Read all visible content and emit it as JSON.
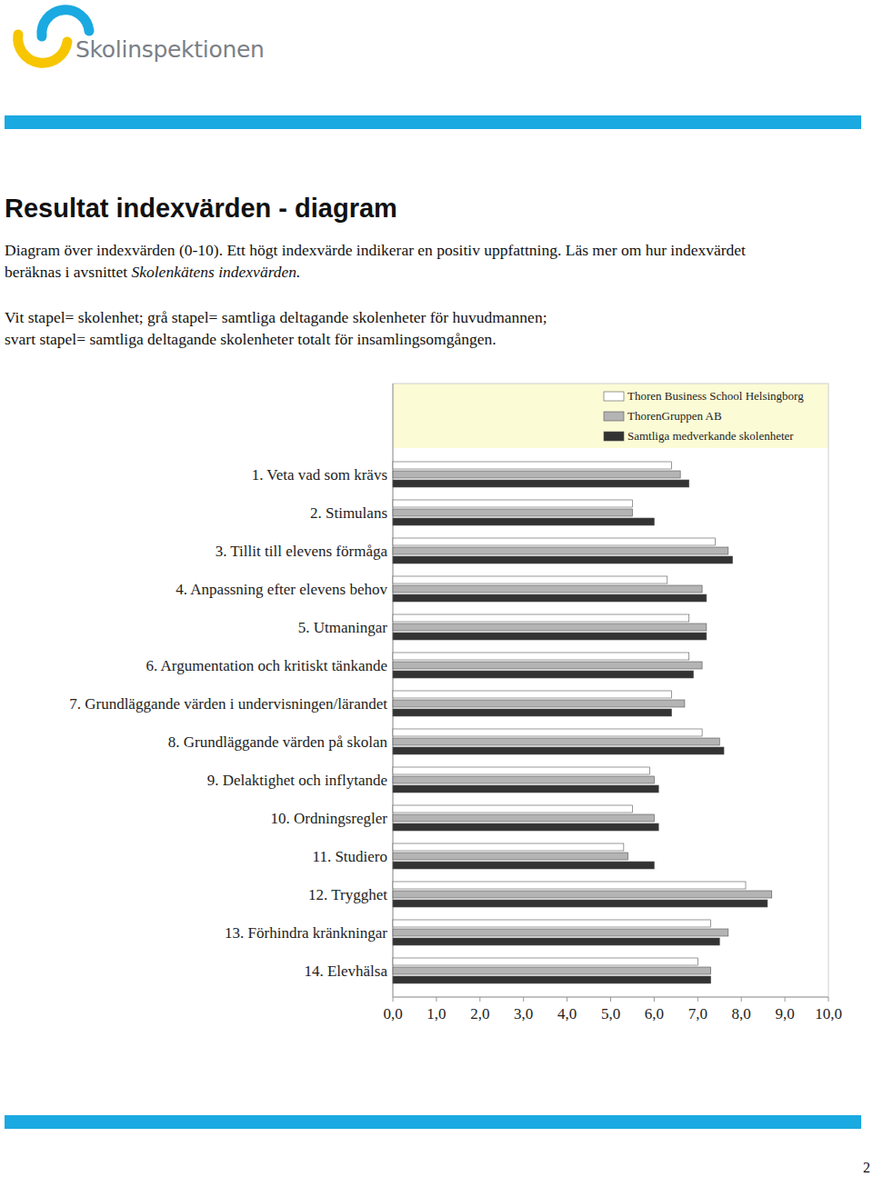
{
  "page": {
    "logo_text": "Skolinspektionen",
    "title": "Resultat indexvärden - diagram",
    "intro_lines": [
      "Diagram över indexvärden (0-10). Ett högt indexvärde indikerar en positiv uppfattning. Läs mer om hur indexvärdet",
      "beräknas i avsnittet "
    ],
    "intro_emphasis": "Skolenkätens indexvärden.",
    "key_lines": [
      "Vit stapel= skolenhet; grå stapel= samtliga deltagande skolenheter för huvudmannen;",
      "svart stapel= samtliga deltagande skolenheter totalt för insamlingsomgången."
    ],
    "page_number": "2"
  },
  "chart_data": {
    "type": "bar",
    "orientation": "horizontal",
    "categories": [
      "1. Veta vad som krävs",
      "2. Stimulans",
      "3. Tillit till elevens förmåga",
      "4. Anpassning efter elevens behov",
      "5. Utmaningar",
      "6. Argumentation och kritiskt tänkande",
      "7. Grundläggande värden i undervisningen/lärandet",
      "8. Grundläggande värden på skolan",
      "9. Delaktighet och inflytande",
      "10. Ordningsregler",
      "11. Studiero",
      "12. Trygghet",
      "13. Förhindra kränkningar",
      "14. Elevhälsa"
    ],
    "series": [
      {
        "name": "Thoren Business School Helsingborg",
        "color": "#ffffff",
        "values": [
          6.4,
          5.5,
          7.4,
          6.3,
          6.8,
          6.8,
          6.4,
          7.1,
          5.9,
          5.5,
          5.3,
          8.1,
          7.3,
          7.0
        ]
      },
      {
        "name": "ThorenGruppen AB",
        "color": "#b4b4b4",
        "values": [
          6.6,
          5.5,
          7.7,
          7.1,
          7.2,
          7.1,
          6.7,
          7.5,
          6.0,
          6.0,
          5.4,
          8.7,
          7.7,
          7.3
        ]
      },
      {
        "name": "Samtliga medverkande skolenheter",
        "color": "#333333",
        "values": [
          6.8,
          6.0,
          7.8,
          7.2,
          7.2,
          6.9,
          6.4,
          7.6,
          6.1,
          6.1,
          6.0,
          8.6,
          7.5,
          7.3
        ]
      }
    ],
    "xlim": [
      0,
      10
    ],
    "xticks": [
      {
        "value": 0,
        "label": "0,0"
      },
      {
        "value": 1,
        "label": "1,0"
      },
      {
        "value": 2,
        "label": "2,0"
      },
      {
        "value": 3,
        "label": "3,0"
      },
      {
        "value": 4,
        "label": "4,0"
      },
      {
        "value": 5,
        "label": "5,0"
      },
      {
        "value": 6,
        "label": "6,0"
      },
      {
        "value": 7,
        "label": "7,0"
      },
      {
        "value": 8,
        "label": "8,0"
      },
      {
        "value": 9,
        "label": "9,0"
      },
      {
        "value": 10,
        "label": "10,0"
      }
    ],
    "grid": false,
    "legend": "top"
  }
}
